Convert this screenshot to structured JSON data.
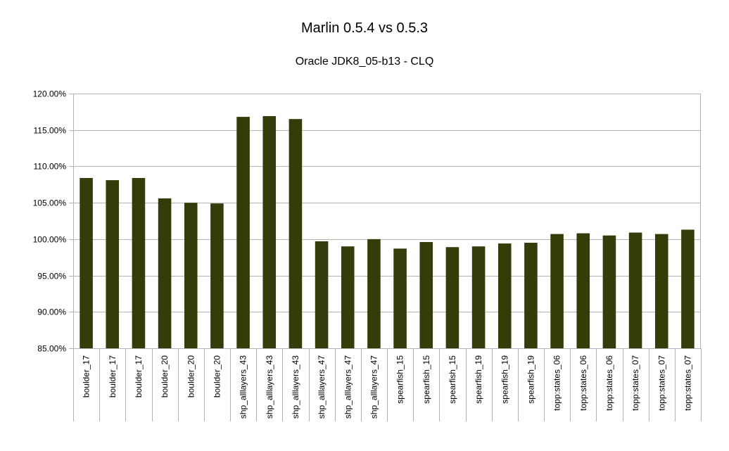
{
  "chart_data": {
    "type": "bar",
    "title": "Marlin 0.5.4 vs 0.5.3",
    "subtitle": "Oracle JDK8_05-b13 - CLQ",
    "xlabel": "",
    "ylabel": "",
    "ylim": [
      85,
      120
    ],
    "yticks": [
      85,
      90,
      95,
      100,
      105,
      110,
      115,
      120
    ],
    "ytick_labels": [
      "85.00%",
      "90.00%",
      "95.00%",
      "100.00%",
      "105.00%",
      "110.00%",
      "115.00%",
      "120.00%"
    ],
    "grid": true,
    "legend": "none",
    "bar_color": "#333d0a",
    "categories": [
      "boulder_17",
      "boulder_17",
      "boulder_17",
      "boulder_20",
      "boulder_20",
      "boulder_20",
      "shp_alllayers_43",
      "shp_alllayers_43",
      "shp_alllayers_43",
      "shp_alllayers_47",
      "shp_alllayers_47",
      "shp_alllayers_47",
      "spearfish_15",
      "spearfish_15",
      "spearfish_15",
      "spearfish_19",
      "spearfish_19",
      "spearfish_19",
      "topp:states_06",
      "topp:states_06",
      "topp:states_06",
      "topp:states_07",
      "topp:states_07",
      "topp:states_07"
    ],
    "values": [
      108.4,
      108.1,
      108.4,
      105.6,
      105.0,
      104.9,
      116.8,
      116.9,
      116.5,
      99.7,
      99.0,
      100.0,
      98.7,
      99.6,
      98.9,
      99.0,
      99.4,
      99.5,
      100.7,
      100.8,
      100.5,
      100.9,
      100.7,
      101.3
    ]
  }
}
